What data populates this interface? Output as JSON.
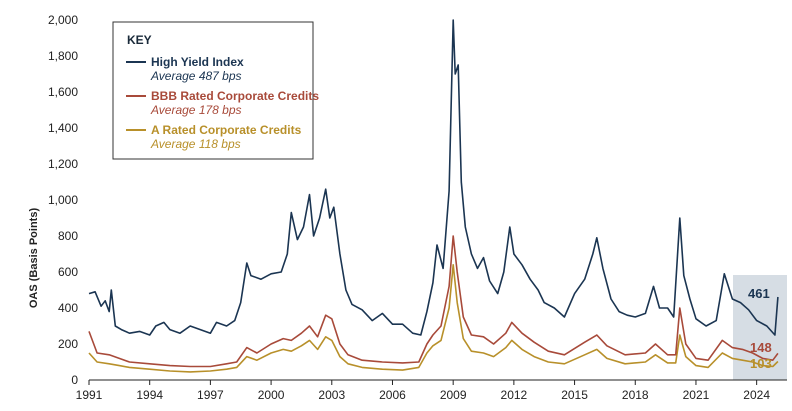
{
  "chart_data": {
    "type": "line",
    "title": "",
    "xlabel": "",
    "ylabel": "OAS (Basis Points)",
    "xlim": [
      1991,
      2025.5
    ],
    "ylim": [
      0,
      2000
    ],
    "x_ticks": [
      "1991",
      "1994",
      "1997",
      "2000",
      "2003",
      "2006",
      "2009",
      "2012",
      "2015",
      "2018",
      "2021",
      "2024"
    ],
    "y_ticks": [
      "0",
      "200",
      "400",
      "600",
      "800",
      "1,000",
      "1,200",
      "1,400",
      "1,600",
      "1,800",
      "2,000"
    ],
    "grid": false,
    "legend_title": "KEY",
    "legend_position": "top-left",
    "series": [
      {
        "name": "High Yield Index",
        "average_label": "Average 487 bps",
        "color": "#1b3552",
        "end_value_label": "461",
        "points": [
          [
            1991.0,
            480
          ],
          [
            1991.3,
            490
          ],
          [
            1991.6,
            410
          ],
          [
            1991.8,
            440
          ],
          [
            1992.0,
            380
          ],
          [
            1992.1,
            500
          ],
          [
            1992.3,
            300
          ],
          [
            1992.6,
            280
          ],
          [
            1993.0,
            260
          ],
          [
            1993.5,
            270
          ],
          [
            1994.0,
            250
          ],
          [
            1994.3,
            300
          ],
          [
            1994.7,
            320
          ],
          [
            1995.0,
            280
          ],
          [
            1995.5,
            260
          ],
          [
            1996.0,
            300
          ],
          [
            1996.5,
            280
          ],
          [
            1997.0,
            260
          ],
          [
            1997.3,
            320
          ],
          [
            1997.8,
            300
          ],
          [
            1998.2,
            330
          ],
          [
            1998.5,
            430
          ],
          [
            1998.8,
            650
          ],
          [
            1999.0,
            580
          ],
          [
            1999.5,
            560
          ],
          [
            2000.0,
            590
          ],
          [
            2000.5,
            600
          ],
          [
            2000.8,
            700
          ],
          [
            2001.0,
            930
          ],
          [
            2001.3,
            780
          ],
          [
            2001.6,
            850
          ],
          [
            2001.9,
            1030
          ],
          [
            2002.1,
            800
          ],
          [
            2002.4,
            900
          ],
          [
            2002.7,
            1060
          ],
          [
            2002.9,
            900
          ],
          [
            2003.1,
            960
          ],
          [
            2003.4,
            700
          ],
          [
            2003.7,
            500
          ],
          [
            2004.0,
            420
          ],
          [
            2004.5,
            390
          ],
          [
            2005.0,
            330
          ],
          [
            2005.5,
            370
          ],
          [
            2006.0,
            310
          ],
          [
            2006.5,
            310
          ],
          [
            2007.0,
            260
          ],
          [
            2007.4,
            250
          ],
          [
            2007.7,
            380
          ],
          [
            2008.0,
            540
          ],
          [
            2008.2,
            750
          ],
          [
            2008.5,
            620
          ],
          [
            2008.8,
            1050
          ],
          [
            2009.0,
            2000
          ],
          [
            2009.1,
            1700
          ],
          [
            2009.25,
            1750
          ],
          [
            2009.4,
            1100
          ],
          [
            2009.6,
            850
          ],
          [
            2009.9,
            700
          ],
          [
            2010.2,
            620
          ],
          [
            2010.5,
            680
          ],
          [
            2010.8,
            550
          ],
          [
            2011.2,
            480
          ],
          [
            2011.5,
            600
          ],
          [
            2011.8,
            850
          ],
          [
            2012.0,
            700
          ],
          [
            2012.4,
            640
          ],
          [
            2012.8,
            560
          ],
          [
            2013.2,
            500
          ],
          [
            2013.5,
            430
          ],
          [
            2014.0,
            400
          ],
          [
            2014.5,
            350
          ],
          [
            2015.0,
            480
          ],
          [
            2015.5,
            560
          ],
          [
            2015.9,
            700
          ],
          [
            2016.1,
            790
          ],
          [
            2016.4,
            620
          ],
          [
            2016.8,
            450
          ],
          [
            2017.2,
            380
          ],
          [
            2017.6,
            360
          ],
          [
            2018.0,
            350
          ],
          [
            2018.5,
            370
          ],
          [
            2018.9,
            520
          ],
          [
            2019.2,
            400
          ],
          [
            2019.6,
            400
          ],
          [
            2019.9,
            350
          ],
          [
            2020.2,
            900
          ],
          [
            2020.4,
            580
          ],
          [
            2020.7,
            450
          ],
          [
            2021.0,
            340
          ],
          [
            2021.5,
            300
          ],
          [
            2022.0,
            330
          ],
          [
            2022.4,
            590
          ],
          [
            2022.8,
            450
          ],
          [
            2023.2,
            430
          ],
          [
            2023.6,
            390
          ],
          [
            2024.0,
            330
          ],
          [
            2024.5,
            300
          ],
          [
            2024.9,
            250
          ],
          [
            2025.05,
            461
          ]
        ]
      },
      {
        "name": "BBB Rated Corporate Credits",
        "average_label": "Average 178 bps",
        "color": "#a84a3a",
        "end_value_label": "148",
        "points": [
          [
            1991.0,
            270
          ],
          [
            1991.4,
            150
          ],
          [
            1992.0,
            140
          ],
          [
            1992.5,
            120
          ],
          [
            1993.0,
            100
          ],
          [
            1994.0,
            90
          ],
          [
            1995.0,
            80
          ],
          [
            1996.0,
            75
          ],
          [
            1997.0,
            75
          ],
          [
            1997.8,
            90
          ],
          [
            1998.3,
            100
          ],
          [
            1998.8,
            180
          ],
          [
            1999.3,
            150
          ],
          [
            2000.0,
            200
          ],
          [
            2000.6,
            230
          ],
          [
            2001.0,
            220
          ],
          [
            2001.5,
            260
          ],
          [
            2001.9,
            300
          ],
          [
            2002.3,
            240
          ],
          [
            2002.7,
            360
          ],
          [
            2003.0,
            340
          ],
          [
            2003.4,
            200
          ],
          [
            2003.8,
            140
          ],
          [
            2004.5,
            110
          ],
          [
            2005.5,
            100
          ],
          [
            2006.5,
            95
          ],
          [
            2007.3,
            100
          ],
          [
            2007.7,
            200
          ],
          [
            2008.0,
            250
          ],
          [
            2008.4,
            300
          ],
          [
            2008.8,
            520
          ],
          [
            2009.0,
            800
          ],
          [
            2009.2,
            600
          ],
          [
            2009.5,
            350
          ],
          [
            2009.9,
            250
          ],
          [
            2010.5,
            240
          ],
          [
            2011.0,
            200
          ],
          [
            2011.6,
            260
          ],
          [
            2011.9,
            320
          ],
          [
            2012.4,
            260
          ],
          [
            2013.0,
            210
          ],
          [
            2013.7,
            160
          ],
          [
            2014.5,
            140
          ],
          [
            2015.5,
            210
          ],
          [
            2016.1,
            250
          ],
          [
            2016.6,
            190
          ],
          [
            2017.5,
            140
          ],
          [
            2018.5,
            150
          ],
          [
            2019.0,
            200
          ],
          [
            2019.6,
            140
          ],
          [
            2020.0,
            140
          ],
          [
            2020.2,
            400
          ],
          [
            2020.5,
            200
          ],
          [
            2021.0,
            120
          ],
          [
            2021.6,
            110
          ],
          [
            2022.3,
            220
          ],
          [
            2022.8,
            180
          ],
          [
            2023.3,
            170
          ],
          [
            2023.8,
            150
          ],
          [
            2024.3,
            120
          ],
          [
            2024.8,
            110
          ],
          [
            2025.05,
            148
          ]
        ]
      },
      {
        "name": "A Rated Corporate Credits",
        "average_label": "Average 118 bps",
        "color": "#b8902a",
        "end_value_label": "103",
        "points": [
          [
            1991.0,
            150
          ],
          [
            1991.4,
            100
          ],
          [
            1992.0,
            90
          ],
          [
            1992.5,
            80
          ],
          [
            1993.0,
            70
          ],
          [
            1994.0,
            60
          ],
          [
            1995.0,
            50
          ],
          [
            1996.0,
            45
          ],
          [
            1997.0,
            50
          ],
          [
            1997.8,
            60
          ],
          [
            1998.3,
            70
          ],
          [
            1998.8,
            130
          ],
          [
            1999.3,
            110
          ],
          [
            2000.0,
            150
          ],
          [
            2000.6,
            170
          ],
          [
            2001.0,
            160
          ],
          [
            2001.5,
            190
          ],
          [
            2001.9,
            220
          ],
          [
            2002.3,
            170
          ],
          [
            2002.7,
            240
          ],
          [
            2003.0,
            220
          ],
          [
            2003.4,
            130
          ],
          [
            2003.8,
            90
          ],
          [
            2004.5,
            70
          ],
          [
            2005.5,
            60
          ],
          [
            2006.5,
            55
          ],
          [
            2007.3,
            70
          ],
          [
            2007.7,
            150
          ],
          [
            2008.0,
            190
          ],
          [
            2008.4,
            220
          ],
          [
            2008.8,
            400
          ],
          [
            2009.0,
            640
          ],
          [
            2009.2,
            430
          ],
          [
            2009.5,
            230
          ],
          [
            2009.9,
            160
          ],
          [
            2010.5,
            150
          ],
          [
            2011.0,
            130
          ],
          [
            2011.6,
            180
          ],
          [
            2011.9,
            220
          ],
          [
            2012.4,
            170
          ],
          [
            2013.0,
            130
          ],
          [
            2013.7,
            100
          ],
          [
            2014.5,
            90
          ],
          [
            2015.5,
            140
          ],
          [
            2016.1,
            170
          ],
          [
            2016.6,
            120
          ],
          [
            2017.5,
            90
          ],
          [
            2018.5,
            100
          ],
          [
            2019.0,
            140
          ],
          [
            2019.6,
            95
          ],
          [
            2020.0,
            95
          ],
          [
            2020.2,
            250
          ],
          [
            2020.5,
            130
          ],
          [
            2021.0,
            80
          ],
          [
            2021.6,
            70
          ],
          [
            2022.3,
            150
          ],
          [
            2022.8,
            120
          ],
          [
            2023.3,
            110
          ],
          [
            2023.8,
            100
          ],
          [
            2024.3,
            80
          ],
          [
            2024.8,
            75
          ],
          [
            2025.05,
            103
          ]
        ]
      }
    ]
  }
}
